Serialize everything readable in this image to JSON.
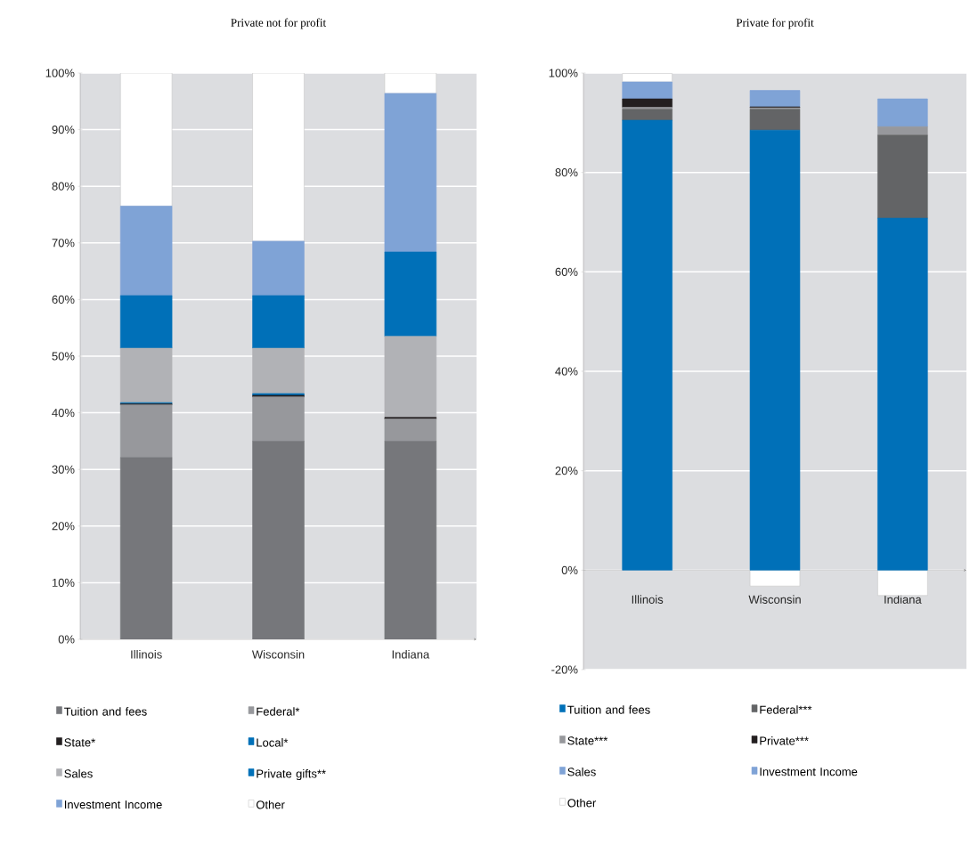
{
  "chart_data": [
    {
      "type": "bar",
      "title": "Private not for profit",
      "categories": [
        "Illinois",
        "Wisconsin",
        "Indiana"
      ],
      "stacked": true,
      "grid": "y",
      "legend": "bottom",
      "ylim": [
        0,
        100
      ],
      "yticks": [
        {
          "value": 0,
          "label": "0%"
        },
        {
          "value": 10,
          "label": "10%"
        },
        {
          "value": 20,
          "label": "20%"
        },
        {
          "value": 30,
          "label": "30%"
        },
        {
          "value": 40,
          "label": "40%"
        },
        {
          "value": 50,
          "label": "50%"
        },
        {
          "value": 60,
          "label": "60%"
        },
        {
          "value": 70,
          "label": "70%"
        },
        {
          "value": 80,
          "label": "80%"
        },
        {
          "value": 90,
          "label": "90%"
        },
        {
          "value": 100,
          "label": "100%"
        }
      ],
      "series": [
        {
          "name": "Tuition and fees",
          "color": "#76777b",
          "values": [
            32.1,
            35.0,
            35.0
          ]
        },
        {
          "name": "Federal*",
          "color": "#97989c",
          "values": [
            9.3,
            7.8,
            3.9
          ]
        },
        {
          "name": "State*",
          "color": "#231f20",
          "values": [
            0.2,
            0.3,
            0.3
          ]
        },
        {
          "name": "Local*",
          "color": "#0070b8",
          "values": [
            0.2,
            0.3,
            0
          ]
        },
        {
          "name": "Sales",
          "color": "#b1b2b6",
          "values": [
            9.6,
            8.0,
            14.3
          ]
        },
        {
          "name": "Private gifts**",
          "color": "#0070b8",
          "values": [
            9.3,
            9.3,
            14.9
          ]
        },
        {
          "name": "Investment Income",
          "color": "#7fa3d6",
          "values": [
            15.8,
            9.6,
            28.0
          ]
        },
        {
          "name": "Other",
          "color": "#ffffff",
          "values": [
            23.5,
            29.7,
            3.6
          ]
        }
      ]
    },
    {
      "type": "bar",
      "title": "Private for profit",
      "categories": [
        "Illinois",
        "Wisconsin",
        "Indiana"
      ],
      "stacked": true,
      "grid": "y",
      "legend": "bottom",
      "ylim": [
        -20,
        100
      ],
      "yticks": [
        {
          "value": -20,
          "label": "-20%"
        },
        {
          "value": 0,
          "label": "0%"
        },
        {
          "value": 20,
          "label": "20%"
        },
        {
          "value": 40,
          "label": "40%"
        },
        {
          "value": 60,
          "label": "60%"
        },
        {
          "value": 80,
          "label": "80%"
        },
        {
          "value": 100,
          "label": "100%"
        }
      ],
      "series": [
        {
          "name": "Tuition and fees",
          "color": "#0070b8",
          "values": [
            90.5,
            88.5,
            70.8
          ]
        },
        {
          "name": "Federal***",
          "color": "#636466",
          "values": [
            2.2,
            4.2,
            16.7
          ]
        },
        {
          "name": "State***",
          "color": "#97989c",
          "values": [
            0.4,
            0.3,
            1.7
          ]
        },
        {
          "name": "Private***",
          "color": "#231f20",
          "values": [
            1.7,
            0.2,
            0
          ]
        },
        {
          "name": "Sales",
          "color": "#7fa3d6",
          "values": [
            3.4,
            3.3,
            5.6
          ]
        },
        {
          "name": "Investment Income",
          "color": "#7fa3d6",
          "values": [
            0,
            0,
            0
          ]
        },
        {
          "name": "Other",
          "color": "#ffffff",
          "values": [
            1.7,
            -3.2,
            -5.1
          ]
        }
      ]
    }
  ]
}
